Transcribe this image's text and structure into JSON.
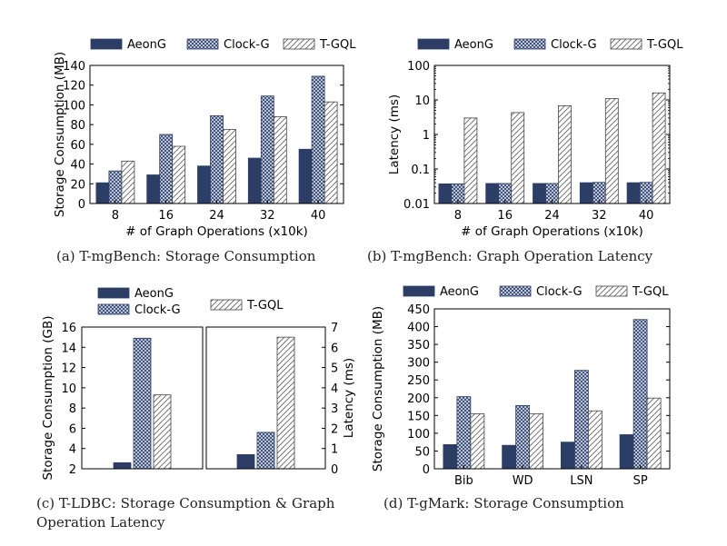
{
  "colors": {
    "aeong": "#2c3e66",
    "clockg_fill": "#dfe6f5",
    "clockg_line": "#2c3e66",
    "tgql_line": "#666666",
    "axis": "#000000"
  },
  "captions": {
    "a": "(a)  T-mgBench: Storage Consumption",
    "b": "(b)  T-mgBench: Graph Operation Latency",
    "c1": "(c)  T-LDBC: Storage Consumption & Graph",
    "c2": "Operation Latency",
    "d": "(d)  T-gMark: Storage Consumption"
  },
  "chart_data": [
    {
      "id": "a",
      "type": "bar",
      "xlabel": "# of Graph Operations (x10k)",
      "ylabel": "Storage Consumption (MB)",
      "ylim": [
        0,
        140
      ],
      "yticks": [
        0,
        20,
        40,
        60,
        80,
        100,
        120,
        140
      ],
      "ytick_labels": [
        "0",
        "20",
        "40",
        "60",
        "80",
        "100",
        "120",
        "140"
      ],
      "grid": false,
      "legend": "top",
      "categories": [
        "8",
        "16",
        "24",
        "32",
        "40"
      ],
      "series": [
        {
          "name": "AeonG",
          "pattern": "solid",
          "values": [
            21,
            29,
            38,
            46,
            55
          ]
        },
        {
          "name": "Clock-G",
          "pattern": "cross",
          "values": [
            33,
            70,
            89,
            109,
            129
          ]
        },
        {
          "name": "T-GQL",
          "pattern": "hatch",
          "values": [
            43,
            58,
            75,
            88,
            103
          ]
        }
      ]
    },
    {
      "id": "b",
      "type": "bar",
      "scale": "log",
      "xlabel": "# of Graph Operations (x10k)",
      "ylabel": "Latency (ms)",
      "ylim": [
        0.01,
        100
      ],
      "yticks": [
        0.01,
        0.1,
        1,
        10,
        100
      ],
      "ytick_labels": [
        "0.01",
        "0.1",
        "1",
        "10",
        "100"
      ],
      "grid": false,
      "legend": "top",
      "categories": [
        "8",
        "16",
        "24",
        "32",
        "40"
      ],
      "series": [
        {
          "name": "AeonG",
          "pattern": "solid",
          "values": [
            0.037,
            0.038,
            0.038,
            0.04,
            0.04
          ]
        },
        {
          "name": "Clock-G",
          "pattern": "cross",
          "values": [
            0.037,
            0.038,
            0.038,
            0.041,
            0.041
          ]
        },
        {
          "name": "T-GQL",
          "pattern": "hatch",
          "values": [
            3,
            4.3,
            6.8,
            11,
            16
          ]
        }
      ]
    },
    {
      "id": "c",
      "type": "bar",
      "dual_axis": true,
      "ylabel_left": "Storage Consumption (GB)",
      "ylabel_right": "Latency (ms)",
      "ylim_left": [
        2,
        16
      ],
      "yticks_left": [
        2,
        4,
        6,
        8,
        10,
        12,
        14,
        16
      ],
      "ytick_labels_left": [
        "2",
        "4",
        "6",
        "8",
        "10",
        "12",
        "14",
        "16"
      ],
      "ylim_right": [
        0,
        7
      ],
      "yticks_right": [
        0,
        1,
        2,
        3,
        4,
        5,
        6,
        7
      ],
      "ytick_labels_right": [
        "0",
        "1",
        "2",
        "3",
        "4",
        "5",
        "6",
        "7"
      ],
      "grid": false,
      "legend": "top",
      "legend_labels": [
        "AeonG",
        "Clock-G",
        "T-GQL"
      ],
      "storage": [
        {
          "name": "AeonG",
          "pattern": "solid",
          "value": 2.6
        },
        {
          "name": "Clock-G",
          "pattern": "cross",
          "value": 14.9
        },
        {
          "name": "T-GQL",
          "pattern": "hatch",
          "value": 9.3
        }
      ],
      "latency": [
        {
          "name": "AeonG",
          "pattern": "solid",
          "value": 0.7
        },
        {
          "name": "Clock-G",
          "pattern": "cross",
          "value": 1.8
        },
        {
          "name": "T-GQL",
          "pattern": "hatch",
          "value": 6.5
        }
      ]
    },
    {
      "id": "d",
      "type": "bar",
      "xlabel": "",
      "ylabel": "Storage Consumption (MB)",
      "ylim": [
        0,
        450
      ],
      "yticks": [
        0,
        50,
        100,
        150,
        200,
        250,
        300,
        350,
        400,
        450
      ],
      "ytick_labels": [
        "0",
        "50",
        "100",
        "150",
        "200",
        "250",
        "300",
        "350",
        "400",
        "450"
      ],
      "grid": false,
      "legend": "top",
      "categories": [
        "Bib",
        "WD",
        "LSN",
        "SP"
      ],
      "series": [
        {
          "name": "AeonG",
          "pattern": "solid",
          "values": [
            68,
            66,
            75,
            96
          ]
        },
        {
          "name": "Clock-G",
          "pattern": "cross",
          "values": [
            203,
            178,
            277,
            420
          ]
        },
        {
          "name": "T-GQL",
          "pattern": "hatch",
          "values": [
            155,
            155,
            163,
            199
          ]
        }
      ]
    }
  ]
}
